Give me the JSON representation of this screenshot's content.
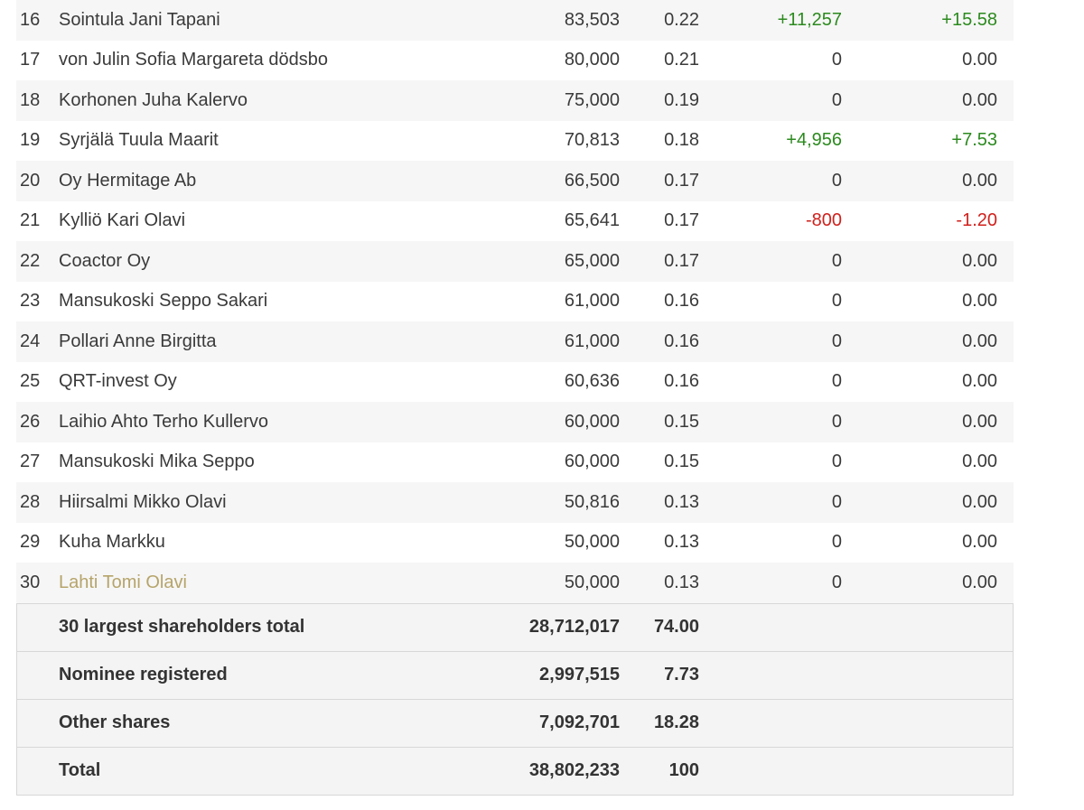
{
  "rows": [
    {
      "rank": "16",
      "name": "Sointula Jani Tapani",
      "shares": "83,503",
      "pct": "0.22",
      "change": "+11,257",
      "change_pct": "+15.58",
      "trend": "pos"
    },
    {
      "rank": "17",
      "name": "von Julin Sofia Margareta dödsbo",
      "shares": "80,000",
      "pct": "0.21",
      "change": "0",
      "change_pct": "0.00",
      "trend": "zero"
    },
    {
      "rank": "18",
      "name": "Korhonen Juha Kalervo",
      "shares": "75,000",
      "pct": "0.19",
      "change": "0",
      "change_pct": "0.00",
      "trend": "zero"
    },
    {
      "rank": "19",
      "name": "Syrjälä Tuula Maarit",
      "shares": "70,813",
      "pct": "0.18",
      "change": "+4,956",
      "change_pct": "+7.53",
      "trend": "pos"
    },
    {
      "rank": "20",
      "name": "Oy Hermitage Ab",
      "shares": "66,500",
      "pct": "0.17",
      "change": "0",
      "change_pct": "0.00",
      "trend": "zero"
    },
    {
      "rank": "21",
      "name": "Kylliö Kari Olavi",
      "shares": "65,641",
      "pct": "0.17",
      "change": "-800",
      "change_pct": "-1.20",
      "trend": "neg"
    },
    {
      "rank": "22",
      "name": "Coactor Oy",
      "shares": "65,000",
      "pct": "0.17",
      "change": "0",
      "change_pct": "0.00",
      "trend": "zero"
    },
    {
      "rank": "23",
      "name": "Mansukoski Seppo Sakari",
      "shares": "61,000",
      "pct": "0.16",
      "change": "0",
      "change_pct": "0.00",
      "trend": "zero"
    },
    {
      "rank": "24",
      "name": "Pollari Anne Birgitta",
      "shares": "61,000",
      "pct": "0.16",
      "change": "0",
      "change_pct": "0.00",
      "trend": "zero"
    },
    {
      "rank": "25",
      "name": "QRT-invest Oy",
      "shares": "60,636",
      "pct": "0.16",
      "change": "0",
      "change_pct": "0.00",
      "trend": "zero"
    },
    {
      "rank": "26",
      "name": "Laihio Ahto Terho Kullervo",
      "shares": "60,000",
      "pct": "0.15",
      "change": "0",
      "change_pct": "0.00",
      "trend": "zero"
    },
    {
      "rank": "27",
      "name": "Mansukoski Mika Seppo",
      "shares": "60,000",
      "pct": "0.15",
      "change": "0",
      "change_pct": "0.00",
      "trend": "zero"
    },
    {
      "rank": "28",
      "name": "Hiirsalmi Mikko Olavi",
      "shares": "50,816",
      "pct": "0.13",
      "change": "0",
      "change_pct": "0.00",
      "trend": "zero"
    },
    {
      "rank": "29",
      "name": "Kuha Markku",
      "shares": "50,000",
      "pct": "0.13",
      "change": "0",
      "change_pct": "0.00",
      "trend": "zero"
    },
    {
      "rank": "30",
      "name": "Lahti Tomi Olavi",
      "shares": "50,000",
      "pct": "0.13",
      "change": "0",
      "change_pct": "0.00",
      "trend": "zero",
      "highlighted": true
    }
  ],
  "totals": [
    {
      "label": "30 largest shareholders total",
      "shares": "28,712,017",
      "pct": "74.00"
    },
    {
      "label": "Nominee registered",
      "shares": "2,997,515",
      "pct": "7.73"
    },
    {
      "label": "Other shares",
      "shares": "7,092,701",
      "pct": "18.28"
    },
    {
      "label": "Total",
      "shares": "38,802,233",
      "pct": "100"
    }
  ],
  "colors": {
    "positive": "#2b8a1e",
    "negative": "#d0211c",
    "highlight": "#ffe246"
  }
}
